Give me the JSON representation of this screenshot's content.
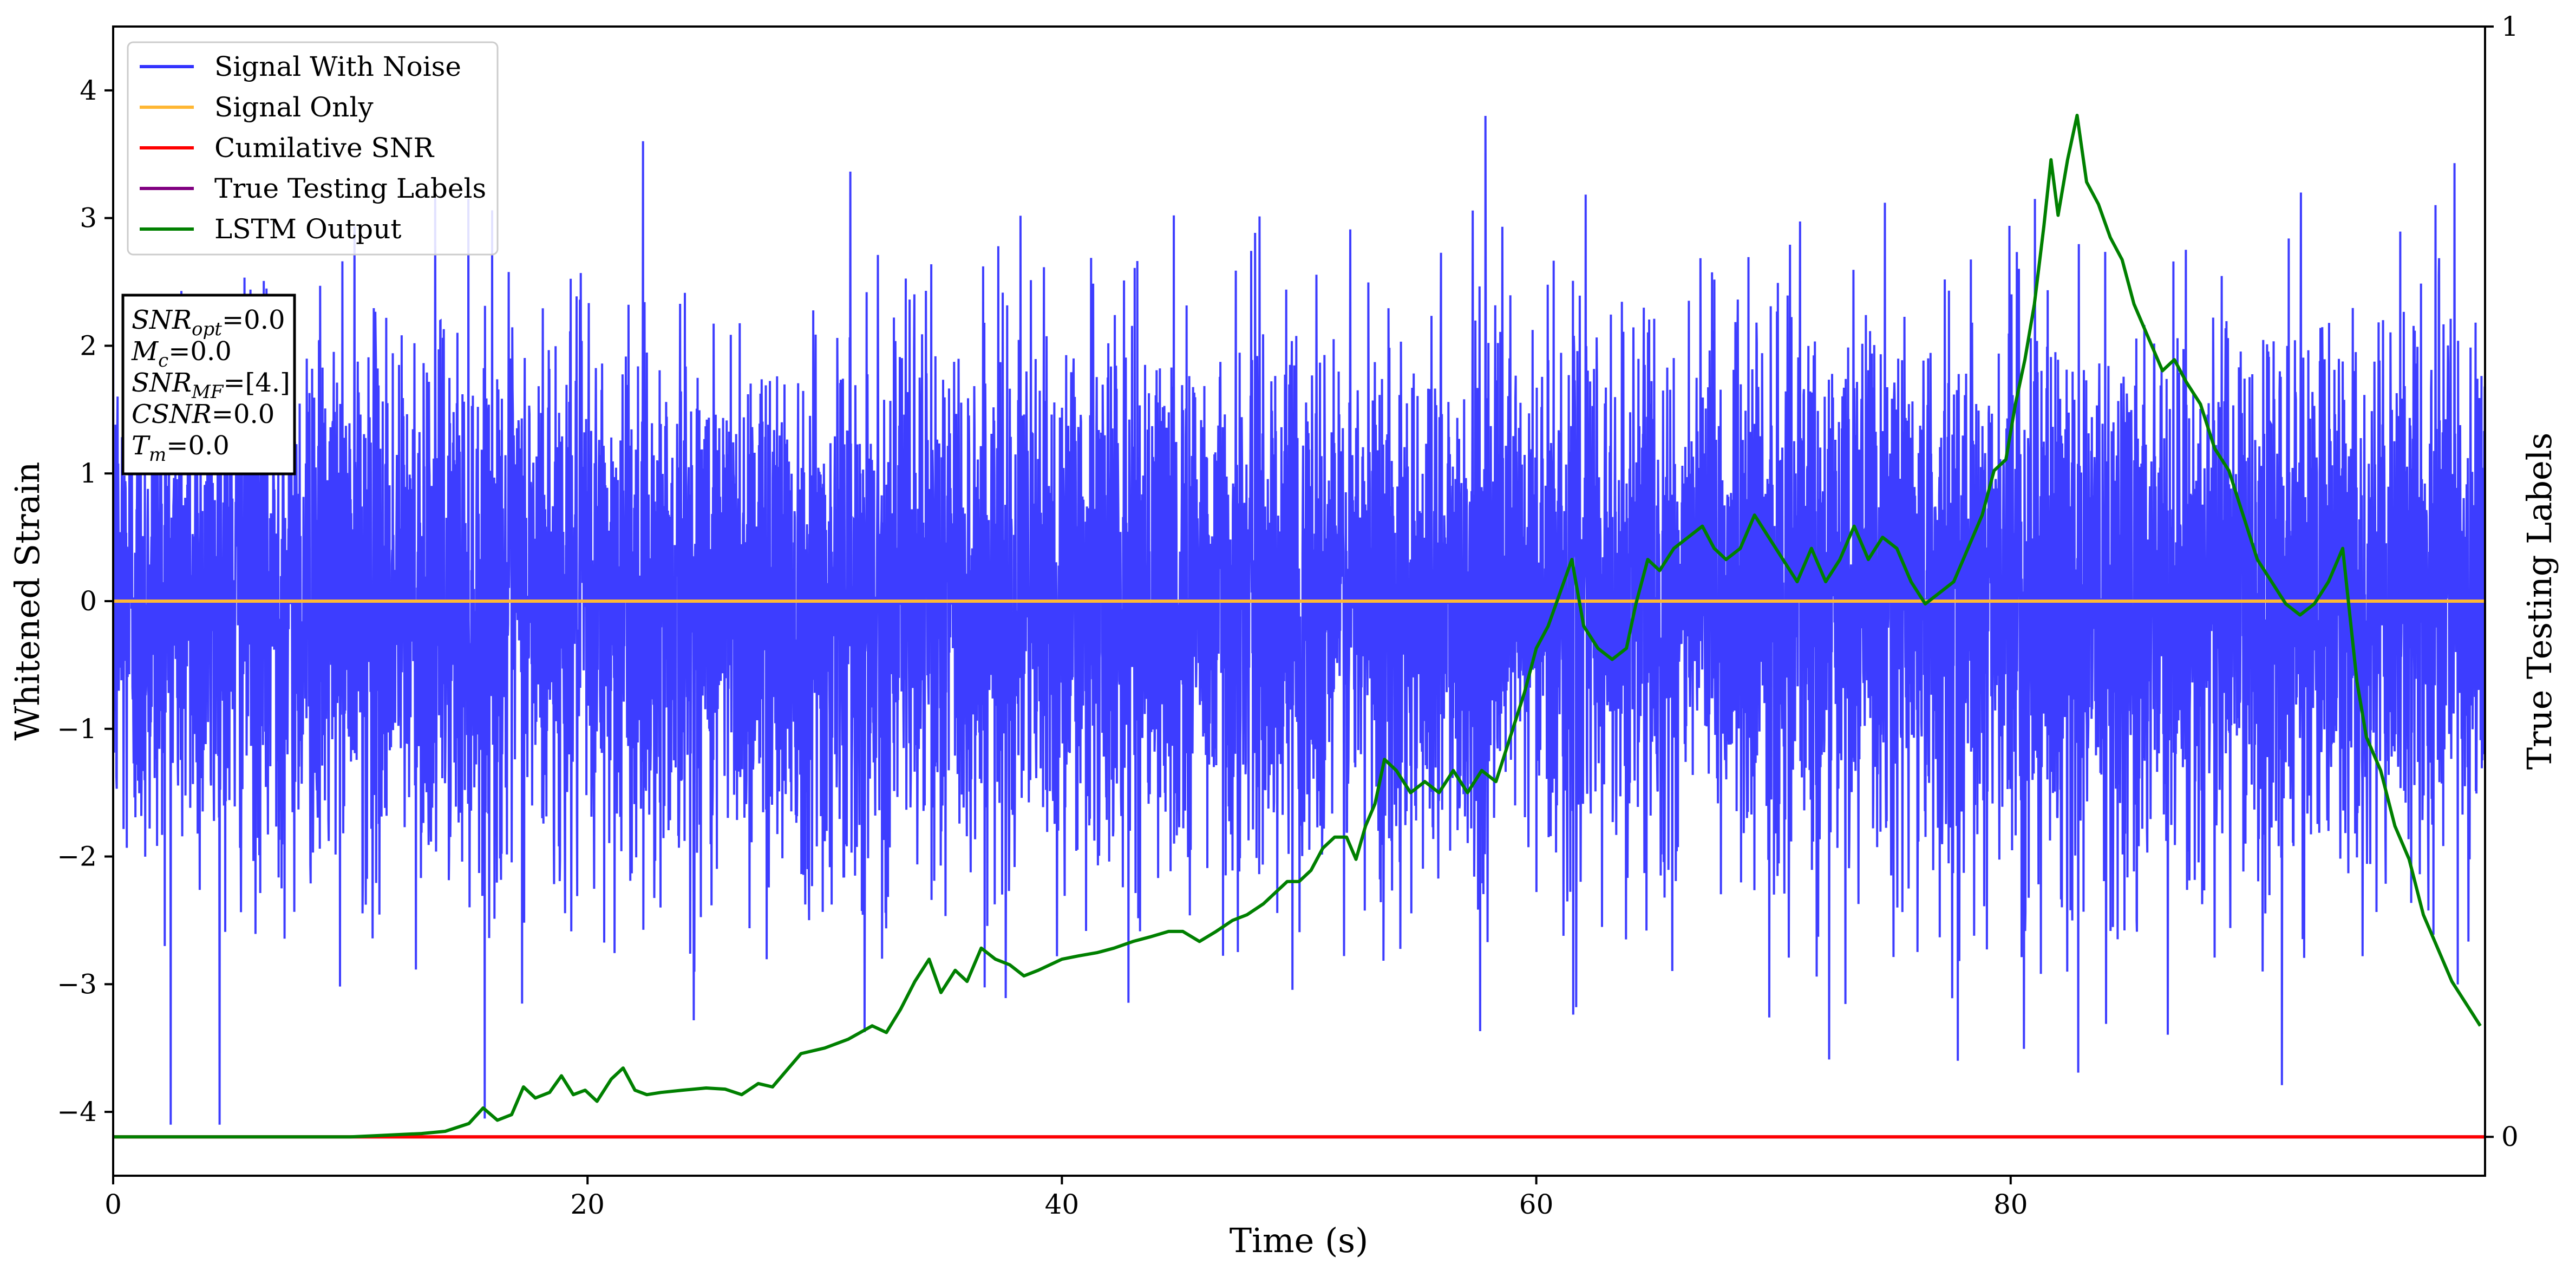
{
  "chart_data": {
    "type": "line",
    "xlabel": "Time (s)",
    "ylabel_left": "Whitened Strain",
    "ylabel_right": "True Testing Labels",
    "xlim": [
      0,
      100
    ],
    "ylim_left": [
      -4.5,
      4.5
    ],
    "ylim_right": [
      -0.035,
      1.0
    ],
    "x_ticks": [
      0,
      20,
      40,
      60,
      80
    ],
    "y_ticks_left": [
      -4,
      -3,
      -2,
      -1,
      0,
      1,
      2,
      3,
      4
    ],
    "y_ticks_right": [
      0,
      1
    ],
    "grid": false,
    "legend_position": "top-left",
    "series": [
      {
        "name": "Signal With Noise",
        "color": "#3333ff",
        "axis": "left",
        "description": "dense noise",
        "approx_range": [
          -4.1,
          3.8
        ],
        "x": [],
        "values": []
      },
      {
        "name": "Signal Only",
        "color": "#ffb733",
        "axis": "left",
        "x": [
          0,
          100
        ],
        "values": [
          0,
          0
        ]
      },
      {
        "name": "Cumilative SNR",
        "color": "#ff0000",
        "axis": "right",
        "x": [
          0,
          100
        ],
        "values": [
          0,
          0
        ]
      },
      {
        "name": "True Testing Labels",
        "color": "#800080",
        "axis": "right",
        "x": [
          0,
          100
        ],
        "values": [
          0,
          0
        ]
      },
      {
        "name": "LSTM Output",
        "color": "#008000",
        "axis": "right",
        "x": [
          0,
          5,
          10,
          11,
          12,
          13,
          14,
          15,
          15.6,
          16.2,
          16.8,
          17.3,
          17.8,
          18.4,
          18.9,
          19.4,
          19.9,
          20.4,
          21,
          21.5,
          22,
          22.5,
          23.1,
          24,
          25,
          25.8,
          26.5,
          27.2,
          27.8,
          28.4,
          29,
          30,
          31,
          31.5,
          32,
          32.6,
          33.2,
          33.8,
          34.4,
          34.9,
          35.5,
          36,
          36.6,
          37.2,
          37.8,
          38.4,
          39,
          40,
          40.7,
          41.5,
          42.2,
          43,
          43.7,
          44.5,
          45.1,
          45.8,
          46.5,
          47.2,
          47.8,
          48.5,
          49,
          49.5,
          50,
          50.5,
          51,
          51.5,
          52,
          52.4,
          52.8,
          53.2,
          53.6,
          54.1,
          54.7,
          55.3,
          55.9,
          56.5,
          57.1,
          57.7,
          58.3,
          58.9,
          59.5,
          60,
          60.5,
          61,
          61.5,
          62,
          62.6,
          63.2,
          63.8,
          64.2,
          64.7,
          65.2,
          65.8,
          66.4,
          67,
          67.5,
          68,
          68.6,
          69.2,
          69.8,
          70.4,
          71,
          71.6,
          72.2,
          72.8,
          73.4,
          74,
          74.6,
          75.2,
          75.8,
          76.4,
          77,
          77.6,
          78.2,
          78.8,
          79.3,
          79.8,
          80.2,
          80.6,
          81,
          81.4,
          81.7,
          82,
          82.4,
          82.8,
          83.2,
          83.7,
          84.2,
          84.7,
          85.2,
          85.8,
          86.4,
          86.9,
          87.4,
          88,
          88.6,
          89.2,
          89.8,
          90.4,
          91,
          91.6,
          92.2,
          92.8,
          93.4,
          94,
          94.6,
          95,
          95.6,
          96.2,
          96.8,
          97.4,
          98,
          98.6,
          99.2,
          99.8
        ],
        "values": [
          0,
          0,
          0,
          0.001,
          0.002,
          0.003,
          0.005,
          0.012,
          0.026,
          0.015,
          0.02,
          0.045,
          0.035,
          0.04,
          0.055,
          0.038,
          0.042,
          0.032,
          0.052,
          0.062,
          0.042,
          0.038,
          0.04,
          0.042,
          0.044,
          0.043,
          0.038,
          0.048,
          0.045,
          0.06,
          0.075,
          0.08,
          0.088,
          0.094,
          0.1,
          0.094,
          0.115,
          0.14,
          0.16,
          0.13,
          0.15,
          0.14,
          0.17,
          0.16,
          0.155,
          0.145,
          0.15,
          0.16,
          0.163,
          0.166,
          0.17,
          0.176,
          0.18,
          0.185,
          0.185,
          0.176,
          0.185,
          0.195,
          0.2,
          0.21,
          0.22,
          0.23,
          0.23,
          0.24,
          0.26,
          0.27,
          0.27,
          0.25,
          0.28,
          0.3,
          0.34,
          0.33,
          0.31,
          0.32,
          0.31,
          0.33,
          0.31,
          0.33,
          0.32,
          0.36,
          0.4,
          0.44,
          0.46,
          0.49,
          0.52,
          0.46,
          0.44,
          0.43,
          0.44,
          0.48,
          0.52,
          0.51,
          0.53,
          0.54,
          0.55,
          0.53,
          0.52,
          0.53,
          0.56,
          0.54,
          0.52,
          0.5,
          0.53,
          0.5,
          0.52,
          0.55,
          0.52,
          0.54,
          0.53,
          0.5,
          0.48,
          0.49,
          0.5,
          0.53,
          0.56,
          0.6,
          0.61,
          0.66,
          0.7,
          0.75,
          0.82,
          0.88,
          0.83,
          0.88,
          0.92,
          0.86,
          0.84,
          0.81,
          0.79,
          0.75,
          0.72,
          0.69,
          0.7,
          0.68,
          0.66,
          0.62,
          0.6,
          0.56,
          0.52,
          0.5,
          0.48,
          0.47,
          0.48,
          0.5,
          0.53,
          0.41,
          0.36,
          0.33,
          0.28,
          0.25,
          0.2,
          0.17,
          0.14,
          0.12,
          0.1
        ]
      }
    ],
    "annotations": [
      {
        "label": "SNR",
        "sub": "opt",
        "value": "=0.0"
      },
      {
        "label": "M",
        "sub": "c",
        "value": "=0.0"
      },
      {
        "label": "SNR",
        "sub": "MF",
        "value": "=[4.]"
      },
      {
        "label": "CSNR",
        "sub": "",
        "value": "=0.0"
      },
      {
        "label": "T",
        "sub": "m",
        "value": "=0.0"
      }
    ]
  }
}
